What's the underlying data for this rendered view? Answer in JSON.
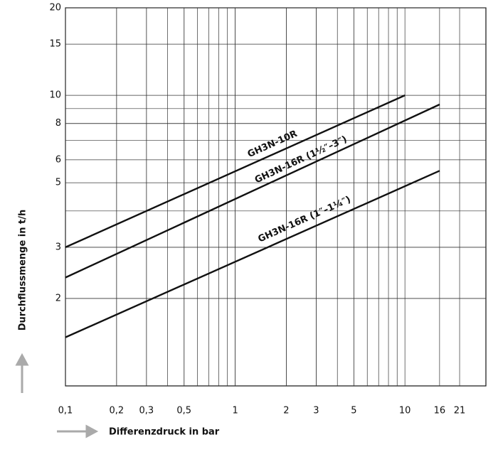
{
  "chart_data": {
    "type": "line",
    "x_label": "Differenzdruck in bar",
    "y_label": "Durchflussmenge in t/h",
    "xscale": "log",
    "yscale": "log",
    "grid": true,
    "minor_grid": true,
    "xlim": [
      0.1,
      30
    ],
    "ylim": [
      1,
      20
    ],
    "xticks": [
      {
        "value": 0.1,
        "label": "0,1"
      },
      {
        "value": 0.2,
        "label": "0,2"
      },
      {
        "value": 0.3,
        "label": "0,3"
      },
      {
        "value": 0.5,
        "label": "0,5"
      },
      1,
      2,
      3,
      5,
      10,
      16,
      21
    ],
    "yticks": [
      2,
      3,
      5,
      6,
      8,
      10,
      15,
      20
    ],
    "series": [
      {
        "name": "GH3N-10R",
        "color": "#111111",
        "x": [
          0.1,
          10
        ],
        "values": [
          3,
          10
        ]
      },
      {
        "name": "GH3N-16R (1½″–3″)",
        "color": "#111111",
        "x": [
          0.1,
          16
        ],
        "values": [
          2.36,
          9.3
        ]
      },
      {
        "name": "GH3N-16R (1″–1¼″)",
        "color": "#111111",
        "x": [
          0.1,
          16
        ],
        "values": [
          1.47,
          5.5
        ]
      }
    ]
  }
}
